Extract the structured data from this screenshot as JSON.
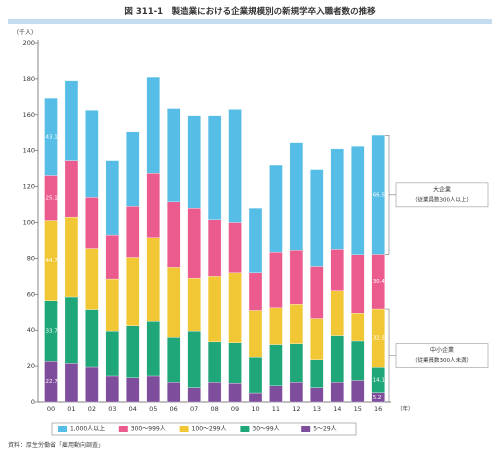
{
  "title": "図 311-1　製造業における企業規模別の新規学卒入職者数の推移",
  "source": "資料：厚生労働省「雇用動向調査」",
  "colors": {
    "s1000": "#56bde6",
    "s300": "#ec5b8e",
    "s100": "#f2c735",
    "s30": "#1fa679",
    "s5": "#7e4d9c",
    "title_bar": "#c5dcef"
  },
  "chart_data": {
    "type": "bar",
    "stacked": true,
    "ylabel": "（千人）",
    "xunit": "（年）",
    "ylim": [
      0,
      200
    ],
    "yticks": [
      0,
      20,
      40,
      60,
      80,
      100,
      120,
      140,
      160,
      180,
      200
    ],
    "categories": [
      "00",
      "01",
      "02",
      "03",
      "04",
      "05",
      "06",
      "07",
      "08",
      "09",
      "10",
      "11",
      "12",
      "13",
      "14",
      "15",
      "16"
    ],
    "series": [
      {
        "name": "5～29人",
        "color_key": "s5",
        "values": [
          22.7,
          21.5,
          19.5,
          14.5,
          13.5,
          14.5,
          11,
          8,
          11,
          10.5,
          5,
          9,
          11,
          8,
          11,
          12,
          5.2
        ]
      },
      {
        "name": "30～99人",
        "color_key": "s30",
        "values": [
          33.7,
          37,
          32,
          25,
          29,
          30.5,
          25,
          31.5,
          22.5,
          22.5,
          20,
          23,
          21.5,
          15.5,
          26,
          22,
          14.1
        ]
      },
      {
        "name": "100～299人",
        "color_key": "s100",
        "values": [
          44.7,
          44.5,
          34,
          29,
          38,
          46.5,
          39,
          29.5,
          36.5,
          39,
          26,
          20.5,
          22,
          23,
          25,
          15.5,
          32.5
        ]
      },
      {
        "name": "300～999人",
        "color_key": "s300",
        "values": [
          25.1,
          31.5,
          28.5,
          24.5,
          28.5,
          36,
          36.5,
          39,
          31.5,
          28,
          21,
          31,
          30,
          29,
          23,
          32.5,
          30.4
        ]
      },
      {
        "name": "1,000人以上",
        "color_key": "s1000",
        "values": [
          43.1,
          44.5,
          48.5,
          41.5,
          41.5,
          53.5,
          52,
          51.5,
          58,
          63,
          36,
          48.5,
          60,
          54,
          56,
          60.5,
          66.5
        ]
      }
    ],
    "data_labels": [
      {
        "category": "00",
        "series": "5～29人",
        "text": "22.7"
      },
      {
        "category": "00",
        "series": "30～99人",
        "text": "33.7"
      },
      {
        "category": "00",
        "series": "100～299人",
        "text": "44.7"
      },
      {
        "category": "00",
        "series": "300～999人",
        "text": "25.1"
      },
      {
        "category": "00",
        "series": "1,000人以上",
        "text": "43.1"
      },
      {
        "category": "16",
        "series": "5～29人",
        "text": "5.2"
      },
      {
        "category": "16",
        "series": "30～99人",
        "text": "14.1"
      },
      {
        "category": "16",
        "series": "100～299人",
        "text": "32.5"
      },
      {
        "category": "16",
        "series": "300～999人",
        "text": "30.4"
      },
      {
        "category": "16",
        "series": "1,000人以上",
        "text": "66.5"
      }
    ],
    "annotations": [
      {
        "label": "大企業",
        "sublabel": "（従業員数300人以上）",
        "range": [
          82.2,
          148.6
        ]
      },
      {
        "label": "中小企業",
        "sublabel": "（従業員数300人未満）",
        "range": [
          0,
          51.8
        ]
      }
    ],
    "legend_position": "bottom",
    "grid": false
  }
}
